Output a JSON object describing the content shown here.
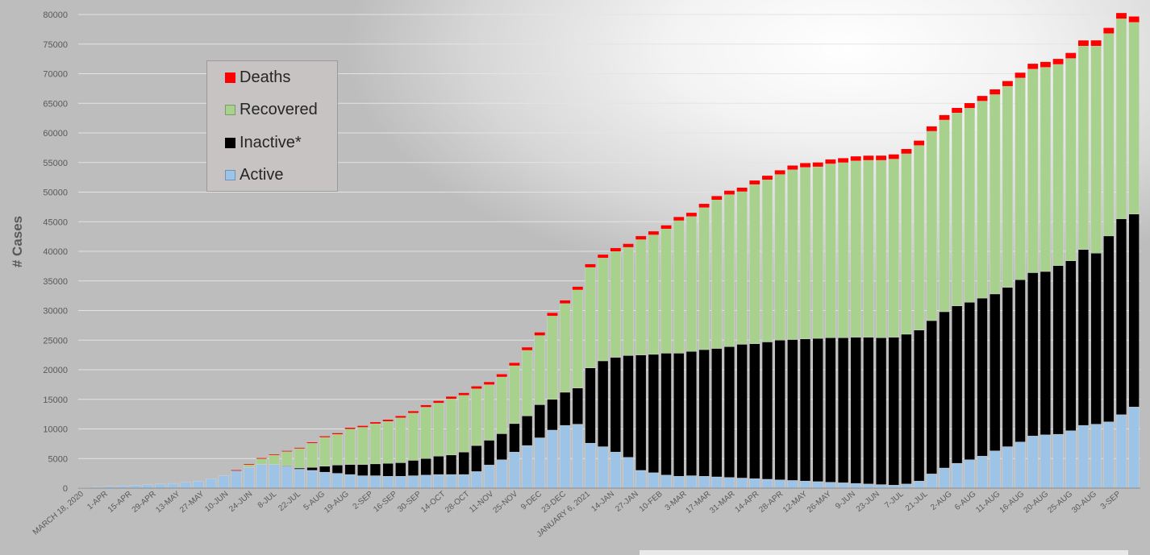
{
  "chart_data": {
    "type": "bar",
    "stacked": true,
    "ylabel": "# Cases",
    "xlabel": "",
    "ylim": [
      0,
      80000
    ],
    "ytick_step": 5000,
    "grid": true,
    "legend_placement": "top-left",
    "legend": [
      "Deaths",
      "Recovered",
      "Inactive*",
      "Active"
    ],
    "xtick_labels": [
      "MARCH 18, 2020",
      "1-APR",
      "15-APR",
      "29-APR",
      "13-MAY",
      "27-MAY",
      "10-JUN",
      "24-JUN",
      "8-JUL",
      "22-JUL",
      "5-AUG",
      "19-AUG",
      "2-SEP",
      "16-SEP",
      "30-SEP",
      "14-OCT",
      "28-OCT",
      "11-NOV",
      "25-NOV",
      "9-DEC",
      "23-DEC",
      "JANUARY 6, 2021",
      "14-JAN",
      "27-JAN",
      "10-FEB",
      "3-MAR",
      "17-MAR",
      "31-MAR",
      "14-APR",
      "28-APR",
      "12-MAY",
      "26-MAY",
      "9-JUN",
      "23-JUN",
      "7-JUL",
      "21-JUL",
      "2-AUG",
      "6-AUG",
      "11-AUG",
      "16-AUG",
      "20-AUG",
      "25-AUG",
      "30-AUG",
      "3-SEP"
    ],
    "series": [
      {
        "name": "Active",
        "color": "#9dc3e6",
        "values": [
          100,
          150,
          300,
          400,
          500,
          600,
          700,
          800,
          1000,
          1200,
          1600,
          2100,
          3000,
          3500,
          4000,
          4000,
          3700,
          3200,
          3000,
          2700,
          2500,
          2300,
          2100,
          2100,
          2000,
          2000,
          2100,
          2200,
          2300,
          2300,
          2300,
          2800,
          3900,
          4800,
          6100,
          7200,
          8500,
          9800,
          10600,
          10800,
          7600,
          7000,
          6100,
          5200,
          3000,
          2600,
          2200,
          2000,
          2100,
          2000,
          1900,
          1800,
          1700,
          1600,
          1500,
          1400,
          1300,
          1200,
          1100,
          1000,
          900,
          800,
          700,
          600,
          500,
          700,
          1200,
          2400,
          3400,
          4200,
          4800,
          5400,
          6300,
          7000,
          7800,
          8800,
          9000,
          9100,
          9700,
          10600,
          10800,
          11200,
          12400,
          13700
        ]
      },
      {
        "name": "Inactive*",
        "color": "#000000",
        "values": [
          0,
          0,
          0,
          0,
          0,
          0,
          0,
          0,
          0,
          0,
          0,
          0,
          0,
          0,
          0,
          0,
          100,
          200,
          500,
          1000,
          1400,
          1700,
          1900,
          2000,
          2200,
          2300,
          2600,
          2800,
          3100,
          3300,
          3800,
          4400,
          4200,
          4400,
          4800,
          5000,
          5600,
          5200,
          5600,
          6100,
          12700,
          14500,
          16000,
          17200,
          19500,
          20000,
          20600,
          20800,
          21000,
          21400,
          21700,
          22100,
          22600,
          22800,
          23200,
          23600,
          23800,
          24000,
          24200,
          24400,
          24500,
          24700,
          24800,
          24800,
          25000,
          25300,
          25500,
          25900,
          26400,
          26600,
          26600,
          26700,
          26500,
          26900,
          27400,
          27600,
          27600,
          28500,
          28700,
          29700,
          28900,
          31400,
          33100,
          32600
        ]
      },
      {
        "name": "Recovered",
        "color": "#a9d18e",
        "values": [
          0,
          0,
          0,
          0,
          0,
          0,
          0,
          0,
          0,
          0,
          0,
          0,
          0,
          500,
          1000,
          1600,
          2400,
          3300,
          4100,
          4900,
          5200,
          6000,
          6300,
          6800,
          7100,
          7600,
          8000,
          8700,
          9000,
          9500,
          9600,
          9600,
          9400,
          9600,
          9800,
          11100,
          11700,
          14100,
          15000,
          16600,
          17000,
          17400,
          17900,
          18300,
          19500,
          20200,
          21000,
          22400,
          22800,
          24000,
          25100,
          25700,
          25800,
          26900,
          27400,
          28000,
          28700,
          29000,
          29000,
          29400,
          29600,
          29800,
          29900,
          30000,
          30100,
          30500,
          31200,
          32000,
          32400,
          32600,
          32800,
          33300,
          33700,
          34000,
          34100,
          34400,
          34500,
          34000,
          34200,
          34400,
          35000,
          34200,
          33800,
          32400
        ]
      },
      {
        "name": "Deaths",
        "color": "#ff0000",
        "values": [
          0,
          0,
          0,
          0,
          0,
          0,
          0,
          0,
          0,
          0,
          0,
          0,
          50,
          60,
          80,
          100,
          100,
          120,
          140,
          160,
          180,
          200,
          220,
          240,
          260,
          280,
          300,
          320,
          340,
          360,
          380,
          400,
          420,
          440,
          460,
          480,
          500,
          500,
          510,
          520,
          530,
          540,
          550,
          560,
          570,
          580,
          590,
          600,
          610,
          620,
          630,
          640,
          650,
          660,
          670,
          680,
          690,
          700,
          710,
          720,
          730,
          740,
          750,
          760,
          770,
          780,
          790,
          800,
          810,
          820,
          830,
          840,
          850,
          860,
          870,
          880,
          890,
          900,
          910,
          920,
          930,
          940,
          950,
          960
        ]
      }
    ]
  }
}
